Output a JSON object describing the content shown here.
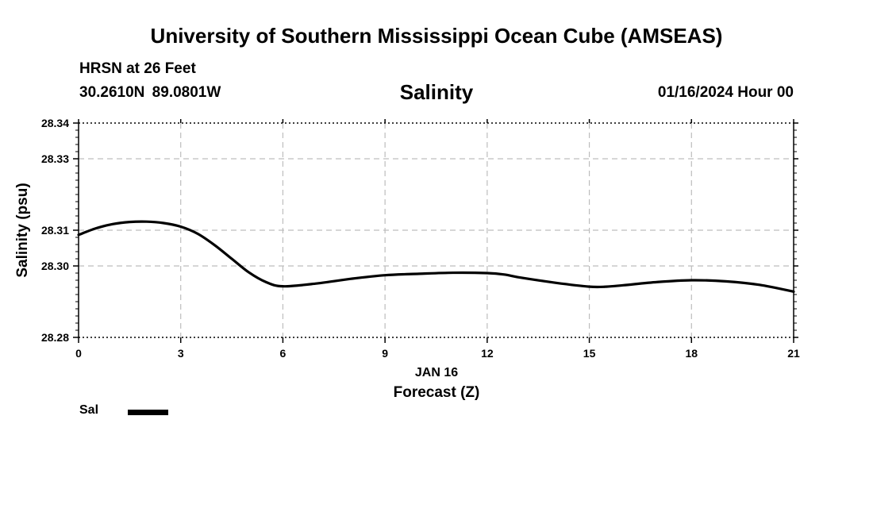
{
  "header": {
    "title": "University of Southern Mississippi Ocean Cube (AMSEAS)",
    "station": "HRSN at 26 Feet",
    "coords": "30.2610N  89.0801W",
    "chart_title": "Salinity",
    "run_time": "01/16/2024 Hour 00"
  },
  "footer": {
    "title": "University of Southern Mississippi Ocean Cube (AMSEAS)"
  },
  "legend": {
    "label": "Sal",
    "color": "#000000"
  },
  "chart_data": {
    "type": "line",
    "title": "Salinity",
    "xlabel": "Forecast (Z)",
    "xlabel_date": "JAN 16",
    "ylabel": "Salinity (psu)",
    "xlim": [
      0,
      21
    ],
    "ylim": [
      28.28,
      28.34
    ],
    "x_ticks": [
      0,
      3,
      6,
      9,
      12,
      15,
      18,
      21
    ],
    "y_ticks": [
      28.28,
      28.3,
      28.31,
      28.33,
      28.34
    ],
    "y_tick_labels": [
      "28.28",
      "28.30",
      "28.31",
      "28.33",
      "28.34"
    ],
    "grid": true,
    "series": [
      {
        "name": "Sal",
        "color": "#000000",
        "x": [
          0,
          0.5,
          1,
          1.5,
          2,
          2.5,
          3,
          3.5,
          4,
          4.5,
          5,
          5.5,
          6,
          7,
          8,
          9,
          10,
          11,
          12,
          12.5,
          13,
          14,
          15,
          15.5,
          16,
          17,
          18,
          19,
          20,
          21
        ],
        "values": [
          28.3087,
          28.3105,
          28.3117,
          28.3123,
          28.3124,
          28.312,
          28.311,
          28.309,
          28.3058,
          28.302,
          28.2982,
          28.2955,
          28.2943,
          28.2951,
          28.2964,
          28.2974,
          28.2978,
          28.2981,
          28.298,
          28.2976,
          28.2967,
          28.2953,
          28.2942,
          28.2942,
          28.2946,
          28.2955,
          28.296,
          28.2957,
          28.2947,
          28.2928
        ]
      }
    ]
  }
}
